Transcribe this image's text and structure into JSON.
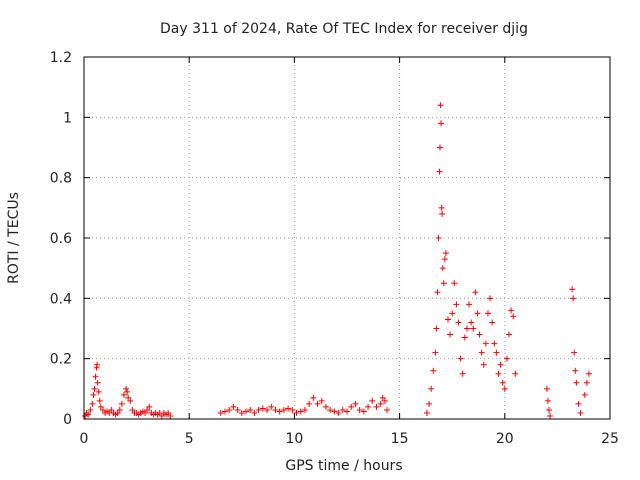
{
  "chart_data": {
    "type": "scatter",
    "title": "Day 311 of 2024, Rate Of TEC Index for receiver djig",
    "xlabel": "GPS time / hours",
    "ylabel": "ROTI / TECUs",
    "xlim": [
      0,
      25
    ],
    "ylim": [
      0,
      1.2
    ],
    "xticks": [
      0,
      5,
      10,
      15,
      20,
      25
    ],
    "xtick_labels": [
      "0",
      "5",
      "10",
      "15",
      "20",
      "25"
    ],
    "yticks": [
      0,
      0.2,
      0.4,
      0.6,
      0.8,
      1,
      1.2
    ],
    "ytick_labels": [
      "0",
      "0.2",
      "0.4",
      "0.6",
      "0.8",
      "1",
      "1.2"
    ],
    "grid": true,
    "marker": "+",
    "color": "#ff0000",
    "series": [
      {
        "name": "ROTI",
        "points": [
          [
            0.05,
            0.01
          ],
          [
            0.12,
            0.02
          ],
          [
            0.2,
            0.015
          ],
          [
            0.3,
            0.03
          ],
          [
            0.4,
            0.05
          ],
          [
            0.45,
            0.08
          ],
          [
            0.5,
            0.1
          ],
          [
            0.55,
            0.14
          ],
          [
            0.6,
            0.17
          ],
          [
            0.62,
            0.18
          ],
          [
            0.65,
            0.12
          ],
          [
            0.7,
            0.09
          ],
          [
            0.75,
            0.06
          ],
          [
            0.8,
            0.04
          ],
          [
            0.9,
            0.03
          ],
          [
            1.0,
            0.02
          ],
          [
            1.1,
            0.025
          ],
          [
            1.2,
            0.02
          ],
          [
            1.3,
            0.03
          ],
          [
            1.4,
            0.02
          ],
          [
            1.5,
            0.015
          ],
          [
            1.6,
            0.02
          ],
          [
            1.7,
            0.03
          ],
          [
            1.8,
            0.05
          ],
          [
            1.9,
            0.08
          ],
          [
            2.0,
            0.1
          ],
          [
            2.05,
            0.09
          ],
          [
            2.1,
            0.07
          ],
          [
            2.2,
            0.06
          ],
          [
            2.3,
            0.03
          ],
          [
            2.4,
            0.02
          ],
          [
            2.5,
            0.02
          ],
          [
            2.6,
            0.015
          ],
          [
            2.7,
            0.02
          ],
          [
            2.8,
            0.025
          ],
          [
            2.9,
            0.02
          ],
          [
            3.0,
            0.03
          ],
          [
            3.1,
            0.04
          ],
          [
            3.2,
            0.02
          ],
          [
            3.3,
            0.015
          ],
          [
            3.4,
            0.02
          ],
          [
            3.5,
            0.015
          ],
          [
            3.6,
            0.02
          ],
          [
            3.7,
            0.01
          ],
          [
            3.8,
            0.02
          ],
          [
            3.9,
            0.015
          ],
          [
            4.0,
            0.02
          ],
          [
            4.1,
            0.01
          ],
          [
            6.5,
            0.02
          ],
          [
            6.7,
            0.025
          ],
          [
            6.9,
            0.03
          ],
          [
            7.1,
            0.04
          ],
          [
            7.3,
            0.03
          ],
          [
            7.5,
            0.02
          ],
          [
            7.7,
            0.025
          ],
          [
            7.9,
            0.03
          ],
          [
            8.1,
            0.02
          ],
          [
            8.3,
            0.03
          ],
          [
            8.5,
            0.035
          ],
          [
            8.7,
            0.03
          ],
          [
            8.9,
            0.04
          ],
          [
            9.1,
            0.03
          ],
          [
            9.3,
            0.025
          ],
          [
            9.5,
            0.03
          ],
          [
            9.7,
            0.035
          ],
          [
            9.9,
            0.03
          ],
          [
            10.1,
            0.02
          ],
          [
            10.3,
            0.025
          ],
          [
            10.5,
            0.03
          ],
          [
            10.7,
            0.05
          ],
          [
            10.9,
            0.07
          ],
          [
            11.1,
            0.05
          ],
          [
            11.3,
            0.06
          ],
          [
            11.5,
            0.04
          ],
          [
            11.7,
            0.03
          ],
          [
            11.9,
            0.025
          ],
          [
            12.1,
            0.02
          ],
          [
            12.3,
            0.03
          ],
          [
            12.5,
            0.025
          ],
          [
            12.7,
            0.04
          ],
          [
            12.9,
            0.05
          ],
          [
            13.1,
            0.03
          ],
          [
            13.3,
            0.025
          ],
          [
            13.5,
            0.04
          ],
          [
            13.7,
            0.06
          ],
          [
            13.9,
            0.04
          ],
          [
            14.1,
            0.05
          ],
          [
            14.2,
            0.07
          ],
          [
            14.3,
            0.06
          ],
          [
            14.4,
            0.03
          ],
          [
            16.3,
            0.02
          ],
          [
            16.4,
            0.05
          ],
          [
            16.5,
            0.1
          ],
          [
            16.6,
            0.16
          ],
          [
            16.7,
            0.22
          ],
          [
            16.75,
            0.3
          ],
          [
            16.8,
            0.42
          ],
          [
            16.85,
            0.6
          ],
          [
            16.9,
            0.82
          ],
          [
            16.92,
            0.9
          ],
          [
            16.95,
            1.04
          ],
          [
            16.97,
            0.98
          ],
          [
            17.0,
            0.7
          ],
          [
            17.02,
            0.68
          ],
          [
            17.05,
            0.5
          ],
          [
            17.1,
            0.45
          ],
          [
            17.15,
            0.53
          ],
          [
            17.2,
            0.55
          ],
          [
            17.3,
            0.33
          ],
          [
            17.4,
            0.28
          ],
          [
            17.5,
            0.35
          ],
          [
            17.6,
            0.45
          ],
          [
            17.7,
            0.38
          ],
          [
            17.8,
            0.32
          ],
          [
            17.9,
            0.2
          ],
          [
            18.0,
            0.15
          ],
          [
            18.1,
            0.27
          ],
          [
            18.2,
            0.3
          ],
          [
            18.3,
            0.38
          ],
          [
            18.4,
            0.32
          ],
          [
            18.5,
            0.3
          ],
          [
            18.6,
            0.42
          ],
          [
            18.7,
            0.35
          ],
          [
            18.8,
            0.28
          ],
          [
            18.9,
            0.22
          ],
          [
            19.0,
            0.18
          ],
          [
            19.1,
            0.25
          ],
          [
            19.2,
            0.35
          ],
          [
            19.3,
            0.4
          ],
          [
            19.4,
            0.32
          ],
          [
            19.5,
            0.25
          ],
          [
            19.6,
            0.22
          ],
          [
            19.7,
            0.15
          ],
          [
            19.8,
            0.18
          ],
          [
            19.9,
            0.12
          ],
          [
            20.0,
            0.1
          ],
          [
            20.1,
            0.2
          ],
          [
            20.2,
            0.28
          ],
          [
            20.3,
            0.36
          ],
          [
            20.4,
            0.34
          ],
          [
            20.5,
            0.15
          ],
          [
            22.0,
            0.1
          ],
          [
            22.05,
            0.06
          ],
          [
            22.1,
            0.03
          ],
          [
            22.15,
            0.01
          ],
          [
            23.2,
            0.43
          ],
          [
            23.25,
            0.4
          ],
          [
            23.3,
            0.22
          ],
          [
            23.35,
            0.16
          ],
          [
            23.4,
            0.12
          ],
          [
            23.5,
            0.05
          ],
          [
            23.6,
            0.02
          ],
          [
            23.8,
            0.08
          ],
          [
            23.9,
            0.12
          ],
          [
            24.0,
            0.15
          ]
        ]
      }
    ]
  }
}
